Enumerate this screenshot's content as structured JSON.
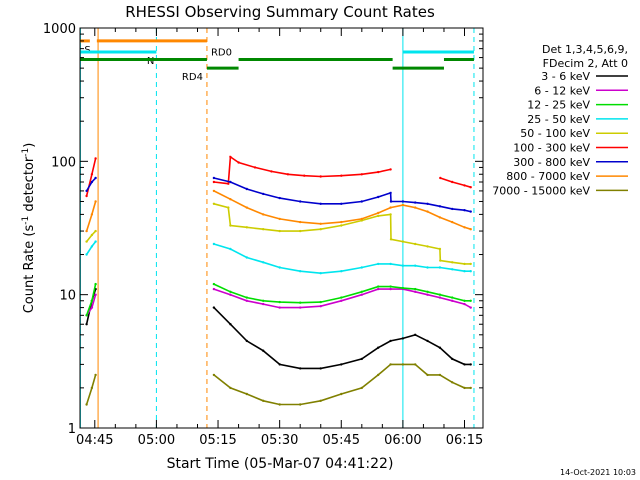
{
  "chart_data": {
    "type": "line",
    "title": "RHESSI Observing Summary Count Rates",
    "xlabel": "Start Time (05-Mar-07 04:41:22)",
    "ylabel_main": "Count Rate (s",
    "ylabel_sup1": "-1",
    "ylabel_mid": " detector",
    "ylabel_sup2": "-1",
    "ylabel_end": ")",
    "timestamp": "14-Oct-2021 10:03",
    "x_unit": "minutes",
    "xlim": [
      281.4,
      379.5
    ],
    "ylim": [
      1,
      1000
    ],
    "yscale": "log",
    "x_ticks": [
      {
        "v": 285,
        "label": "04:45"
      },
      {
        "v": 300,
        "label": "05:00"
      },
      {
        "v": 315,
        "label": "05:15"
      },
      {
        "v": 330,
        "label": "05:30"
      },
      {
        "v": 345,
        "label": "05:45"
      },
      {
        "v": 360,
        "label": "06:00"
      },
      {
        "v": 375,
        "label": "06:15"
      }
    ],
    "y_ticks": [
      {
        "v": 1,
        "label": "1"
      },
      {
        "v": 10,
        "label": "10"
      },
      {
        "v": 100,
        "label": "100"
      },
      {
        "v": 1000,
        "label": "1000"
      }
    ],
    "legend": {
      "position": "right",
      "header": [
        "Det 1,3,4,5,6,9,",
        "FDecim 2, Att 0"
      ]
    },
    "series": [
      {
        "name": "3 - 6 keV",
        "color": "#000000",
        "x": [
          283.0,
          284.3,
          285.2,
          314.0,
          318,
          322,
          326,
          330,
          335,
          340,
          345,
          350,
          354,
          357,
          360,
          363,
          366,
          369,
          372,
          375,
          376.5
        ],
        "values": [
          6,
          9,
          11,
          8,
          6,
          4.5,
          3.8,
          3.0,
          2.8,
          2.8,
          3.0,
          3.3,
          4,
          4.5,
          4.7,
          5,
          4.5,
          4,
          3.3,
          3,
          3
        ]
      },
      {
        "name": "6 - 12 keV",
        "color": "#cc00cc",
        "x": [
          283.0,
          284.3,
          285.2,
          314.0,
          318,
          322,
          326,
          330,
          335,
          340,
          345,
          350,
          354,
          357,
          360,
          363,
          366,
          369,
          372,
          375,
          376.5
        ],
        "values": [
          7,
          8,
          10,
          11,
          10,
          9,
          8.5,
          8,
          8,
          8.2,
          9,
          10,
          11,
          11,
          11,
          10.5,
          10,
          9.5,
          9,
          8.5,
          8
        ]
      },
      {
        "name": "12 - 25 keV",
        "color": "#00dd00",
        "x": [
          283.0,
          284.3,
          285.2,
          314.0,
          318,
          322,
          326,
          330,
          335,
          340,
          345,
          350,
          354,
          357,
          360,
          363,
          366,
          369,
          372,
          375,
          376.5
        ],
        "values": [
          7,
          9,
          12,
          12,
          10.5,
          9.5,
          9,
          8.8,
          8.7,
          8.8,
          9.5,
          10.5,
          11.5,
          11.5,
          11.2,
          11,
          10.5,
          10,
          9.5,
          9,
          9
        ]
      },
      {
        "name": "25 - 50 keV",
        "color": "#00e5ee",
        "x": [
          283.0,
          284.3,
          285.2,
          314.0,
          318,
          322,
          326,
          330,
          335,
          340,
          345,
          350,
          354,
          357,
          360,
          363,
          366,
          369,
          372,
          375,
          376.5
        ],
        "values": [
          20,
          23,
          25,
          24,
          22,
          19,
          17.5,
          16,
          15,
          14.5,
          15,
          16,
          17,
          17,
          16.5,
          16.5,
          16,
          16,
          15.5,
          15,
          15
        ]
      },
      {
        "name": "50 - 100 keV",
        "color": "#cccc00",
        "x": [
          283.0,
          284.3,
          285.2,
          314.0,
          317.5,
          318.0,
          322,
          326,
          330,
          335,
          340,
          345,
          350,
          354,
          357,
          357.1,
          360,
          363,
          366,
          369,
          369.1,
          372,
          375,
          376.5
        ],
        "values": [
          25,
          28,
          30,
          48,
          45,
          33,
          32,
          31,
          30,
          30,
          31,
          33,
          36,
          39,
          40,
          26,
          25,
          24,
          23,
          22,
          18,
          17.5,
          17,
          17
        ]
      },
      {
        "name": "100 - 300 keV",
        "color": "#ff0000",
        "x": [
          283.0,
          284.3,
          285.2,
          314.0,
          317.5,
          318.0,
          320,
          324,
          328,
          332,
          336,
          340,
          345,
          350,
          354,
          357,
          357.1,
          362,
          366,
          369,
          369.1,
          372,
          375,
          376.5
        ],
        "values": [
          55,
          80,
          105,
          70,
          68,
          108,
          98,
          90,
          84,
          80,
          78,
          77,
          78,
          80,
          83,
          87,
          0,
          0,
          0,
          0,
          75,
          70,
          66,
          64
        ]
      },
      {
        "name": "300 - 800 keV",
        "color": "#0000cc",
        "x": [
          283.0,
          284.3,
          285.2,
          314.0,
          318,
          322,
          326,
          330,
          335,
          340,
          345,
          350,
          354,
          357,
          357.1,
          360,
          363,
          366,
          369,
          372,
          375,
          376.5
        ],
        "values": [
          60,
          70,
          75,
          75,
          70,
          62,
          57,
          53,
          50,
          48,
          48,
          50,
          54,
          58,
          50,
          50,
          49,
          48,
          46,
          44,
          43,
          42
        ]
      },
      {
        "name": "800 - 7000 keV",
        "color": "#ff8800",
        "x": [
          283.0,
          284.3,
          285.2,
          314.0,
          318,
          322,
          326,
          330,
          335,
          340,
          345,
          350,
          354,
          357,
          360,
          363,
          366,
          369,
          372,
          375,
          376.5
        ],
        "values": [
          30,
          40,
          50,
          60,
          52,
          45,
          40,
          37,
          35,
          34,
          35,
          37,
          41,
          45,
          47,
          45,
          42,
          38,
          35,
          32,
          31
        ]
      },
      {
        "name": "7000 - 15000 keV",
        "color": "#808000",
        "x": [
          283.0,
          284.3,
          285.2,
          314.0,
          318,
          322,
          326,
          330,
          335,
          340,
          345,
          350,
          354,
          357,
          360,
          363,
          366,
          369,
          372,
          375,
          376.5
        ],
        "values": [
          1.5,
          2,
          2.5,
          2.5,
          2,
          1.8,
          1.6,
          1.5,
          1.5,
          1.6,
          1.8,
          2,
          2.5,
          3,
          3,
          3,
          2.5,
          2.5,
          2.2,
          2,
          2
        ]
      }
    ],
    "vlines": [
      {
        "x": 281.5,
        "color": "#00e5ee",
        "dash": false
      },
      {
        "x": 285.8,
        "color": "#ff8800",
        "dash": false
      },
      {
        "x": 300.0,
        "color": "#00e5ee",
        "dash": true
      },
      {
        "x": 312.3,
        "color": "#ff8800",
        "dash": true
      },
      {
        "x": 360.0,
        "color": "#00e5ee",
        "dash": false
      },
      {
        "x": 377.3,
        "color": "#00e5ee",
        "dash": true
      }
    ],
    "state_bars": [
      {
        "label": "S",
        "color": "#ff8800",
        "y": 800,
        "segments": [
          [
            281.5,
            283.8
          ],
          [
            285.5,
            312.3
          ]
        ]
      },
      {
        "label": "N",
        "color": "#00e5ee",
        "y": 660,
        "segments": [
          [
            281.5,
            300.0
          ],
          [
            360.0,
            377.3
          ]
        ]
      },
      {
        "label": "RD0",
        "color": "#008800",
        "y": 580,
        "segments": [
          [
            281.5,
            312.3
          ],
          [
            320.0,
            357.5
          ],
          [
            370.0,
            377.3
          ]
        ]
      },
      {
        "label": "RD4",
        "color": "#008800",
        "y": 500,
        "segments": [
          [
            312.3,
            320.0
          ],
          [
            357.5,
            370.0
          ]
        ]
      }
    ]
  }
}
